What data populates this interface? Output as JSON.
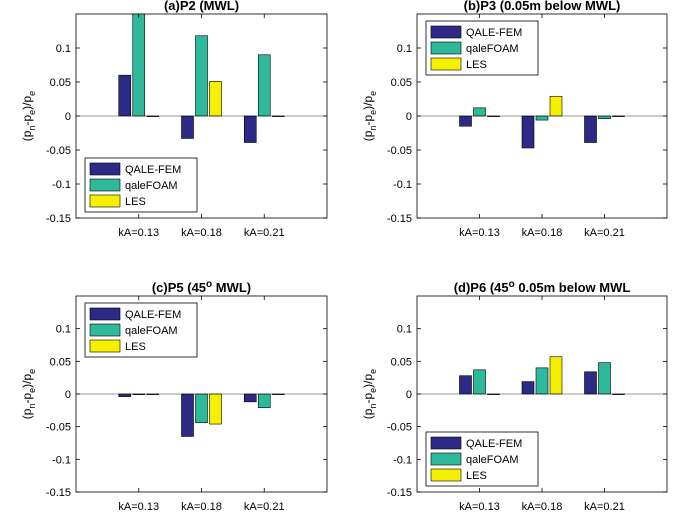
{
  "colors": {
    "QALE-FEM": "#2c2a86",
    "qaleFOAM": "#2fb99b",
    "LES": "#f5f000"
  },
  "chart_data": [
    {
      "type": "bar",
      "title_main": "(a)P2 (MWL)",
      "title_pre": "(a)P2 (MWL)",
      "title_sup": "",
      "title_post": "",
      "ylabel": "(p_n-p_e)/p_e",
      "ylim": [
        -0.15,
        0.15
      ],
      "yticks": [
        "-0.15",
        "-0.1",
        "-0.05",
        "0",
        "0.05",
        "0.1"
      ],
      "categories": [
        "kA=0.13",
        "kA=0.18",
        "kA=0.21"
      ],
      "legend_position": "bottom-left",
      "series": [
        {
          "name": "QALE-FEM",
          "values": [
            0.06,
            -0.033,
            -0.039
          ]
        },
        {
          "name": "qaleFOAM",
          "values": [
            0.15,
            0.118,
            0.09
          ]
        },
        {
          "name": "LES",
          "values": [
            0.0,
            0.051,
            0.0
          ]
        }
      ]
    },
    {
      "type": "bar",
      "title_pre": "(b)P3 (0.05m below MWL)",
      "title_sup": "",
      "title_post": "",
      "ylabel": "(p_n-p_e)/p_e",
      "ylim": [
        -0.15,
        0.15
      ],
      "yticks": [
        "-0.15",
        "-0.1",
        "-0.05",
        "0",
        "0.05",
        "0.1"
      ],
      "categories": [
        "kA=0.13",
        "kA=0.18",
        "kA=0.21"
      ],
      "legend_position": "top-left",
      "series": [
        {
          "name": "QALE-FEM",
          "values": [
            -0.015,
            -0.047,
            -0.039
          ]
        },
        {
          "name": "qaleFOAM",
          "values": [
            0.012,
            -0.006,
            -0.004
          ]
        },
        {
          "name": "LES",
          "values": [
            0.0,
            0.029,
            0.0
          ]
        }
      ]
    },
    {
      "type": "bar",
      "title_pre": "(c)P5 (45",
      "title_sup": "o",
      "title_post": " MWL)",
      "ylabel": "(p_n-p_e)/p_e",
      "ylim": [
        -0.15,
        0.15
      ],
      "yticks": [
        "-0.15",
        "-0.1",
        "-0.05",
        "0",
        "0.05",
        "0.1"
      ],
      "categories": [
        "kA=0.13",
        "kA=0.18",
        "kA=0.21"
      ],
      "legend_position": "top-left",
      "series": [
        {
          "name": "QALE-FEM",
          "values": [
            -0.004,
            -0.065,
            -0.012
          ]
        },
        {
          "name": "qaleFOAM",
          "values": [
            0.0,
            -0.044,
            -0.021
          ]
        },
        {
          "name": "LES",
          "values": [
            0.0,
            -0.046,
            0.0
          ]
        }
      ]
    },
    {
      "type": "bar",
      "title_pre": "(d)P6 (45",
      "title_sup": "o",
      "title_post": " 0.05m below MWL",
      "ylabel": "(p_n-p_e)/p_e",
      "ylim": [
        -0.15,
        0.15
      ],
      "yticks": [
        "-0.15",
        "-0.1",
        "-0.05",
        "0",
        "0.05",
        "0.1"
      ],
      "categories": [
        "kA=0.13",
        "kA=0.18",
        "kA=0.21"
      ],
      "legend_position": "bottom-left",
      "series": [
        {
          "name": "QALE-FEM",
          "values": [
            0.028,
            0.019,
            0.034
          ]
        },
        {
          "name": "qaleFOAM",
          "values": [
            0.037,
            0.04,
            0.048
          ]
        },
        {
          "name": "LES",
          "values": [
            0.0,
            0.057,
            0.0
          ]
        }
      ]
    }
  ]
}
